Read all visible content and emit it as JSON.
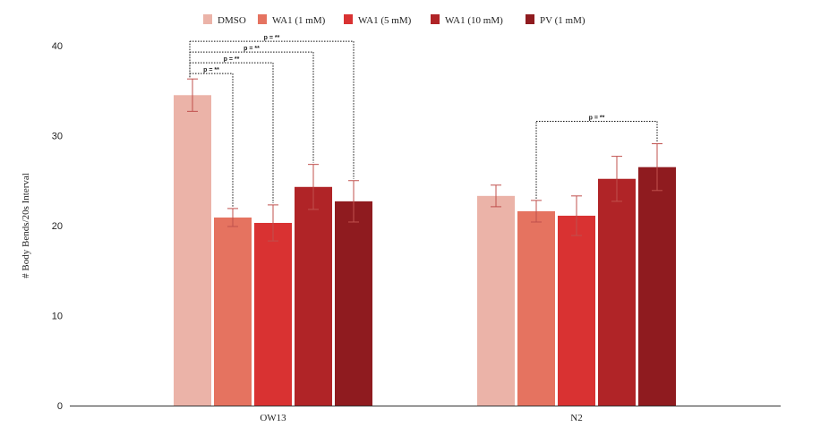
{
  "chart_data": {
    "type": "bar",
    "title": "",
    "xlabel": "",
    "ylabel": "# Body Bends/20s Interval",
    "ylim": [
      0,
      40
    ],
    "yticks": [
      0,
      10,
      20,
      30,
      40
    ],
    "grid": false,
    "legend_position": "top",
    "categories": [
      "OW13",
      "N2"
    ],
    "series": [
      {
        "name": "DMSO",
        "color": "#ebb3a8",
        "values": [
          34.5,
          23.3
        ],
        "errors": [
          1.8,
          1.2
        ]
      },
      {
        "name": "WA1 (1 mM)",
        "color": "#e57360",
        "values": [
          20.9,
          21.6
        ],
        "errors": [
          1.0,
          1.2
        ]
      },
      {
        "name": "WA1 (5 mM)",
        "color": "#d93232",
        "values": [
          20.3,
          21.1
        ],
        "errors": [
          2.0,
          2.2
        ]
      },
      {
        "name": "WA1 (10 mM)",
        "color": "#b02427",
        "values": [
          24.3,
          25.2
        ],
        "errors": [
          2.5,
          2.5
        ]
      },
      {
        "name": "PV (1 mM)",
        "color": "#8f1b1f",
        "values": [
          22.7,
          26.5
        ],
        "errors": [
          2.3,
          2.6
        ]
      }
    ],
    "annotations": [
      {
        "category": "OW13",
        "from": "DMSO",
        "to": "WA1 (1 mM)",
        "label": "p = **"
      },
      {
        "category": "OW13",
        "from": "DMSO",
        "to": "WA1 (5 mM)",
        "label": "p = **"
      },
      {
        "category": "OW13",
        "from": "DMSO",
        "to": "WA1 (10 mM)",
        "label": "p = **"
      },
      {
        "category": "OW13",
        "from": "DMSO",
        "to": "PV (1 mM)",
        "label": "p = **"
      },
      {
        "category": "N2",
        "from": "WA1 (1 mM)",
        "to": "PV (1 mM)",
        "label": "p = **"
      }
    ],
    "error_bar_color": "#c0504d"
  }
}
